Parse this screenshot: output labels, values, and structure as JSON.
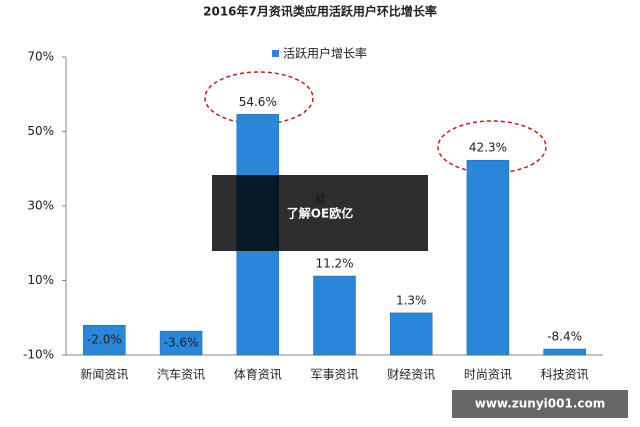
{
  "chart_data": {
    "type": "bar",
    "title": "2016年7月资讯类应用活跃用户环比增长率",
    "categories": [
      "新闻资讯",
      "汽车资讯",
      "体育资讯",
      "军事资讯",
      "财经资讯",
      "时尚资讯",
      "科技资讯"
    ],
    "series": [
      {
        "name": "活跃用户增长率",
        "color": "#2a86d8",
        "values": [
          -2.0,
          -3.6,
          54.6,
          11.2,
          1.3,
          42.3,
          -8.4
        ],
        "value_labels": [
          "-2.0%",
          "-3.6%",
          "54.6%",
          "11.2%",
          "1.3%",
          "42.3%",
          "-8.4%"
        ]
      }
    ],
    "ylim": [
      -10,
      70
    ],
    "yticks": [
      {
        "value": -10,
        "label": "-10%"
      },
      {
        "value": 10,
        "label": "10%"
      },
      {
        "value": 30,
        "label": "30%"
      },
      {
        "value": 50,
        "label": "50%"
      },
      {
        "value": 70,
        "label": "70%"
      }
    ],
    "grid": false
  },
  "overlays": {
    "banner": "了解OE欧亿",
    "url": "www.zunyi001.com"
  }
}
